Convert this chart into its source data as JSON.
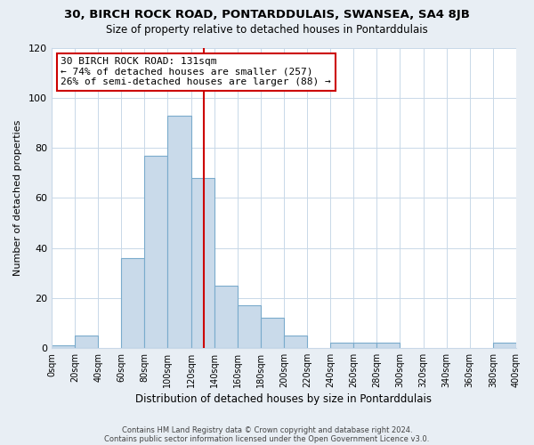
{
  "title1": "30, BIRCH ROCK ROAD, PONTARDDULAIS, SWANSEA, SA4 8JB",
  "title2": "Size of property relative to detached houses in Pontarddulais",
  "xlabel": "Distribution of detached houses by size in Pontarddulais",
  "ylabel": "Number of detached properties",
  "bar_edges": [
    0,
    20,
    40,
    60,
    80,
    100,
    120,
    140,
    160,
    180,
    200,
    220,
    240,
    260,
    280,
    300,
    320,
    340,
    360,
    380,
    400
  ],
  "bar_heights": [
    1,
    5,
    0,
    36,
    77,
    93,
    68,
    25,
    17,
    12,
    5,
    0,
    2,
    2,
    2,
    0,
    0,
    0,
    0,
    2
  ],
  "bar_color": "#c9daea",
  "bar_edge_color": "#7aabcc",
  "vline_x": 131,
  "vline_color": "#cc0000",
  "annotation_title": "30 BIRCH ROCK ROAD: 131sqm",
  "annotation_line1": "← 74% of detached houses are smaller (257)",
  "annotation_line2": "26% of semi-detached houses are larger (88) →",
  "annotation_box_color": "#ffffff",
  "annotation_box_edge": "#cc0000",
  "ylim": [
    0,
    120
  ],
  "tick_labels": [
    "0sqm",
    "20sqm",
    "40sqm",
    "60sqm",
    "80sqm",
    "100sqm",
    "120sqm",
    "140sqm",
    "160sqm",
    "180sqm",
    "200sqm",
    "220sqm",
    "240sqm",
    "260sqm",
    "280sqm",
    "300sqm",
    "320sqm",
    "340sqm",
    "360sqm",
    "380sqm",
    "400sqm"
  ],
  "footer1": "Contains HM Land Registry data © Crown copyright and database right 2024.",
  "footer2": "Contains public sector information licensed under the Open Government Licence v3.0.",
  "background_color": "#e8eef4",
  "plot_background_color": "#ffffff",
  "grid_color": "#c8d8e8"
}
